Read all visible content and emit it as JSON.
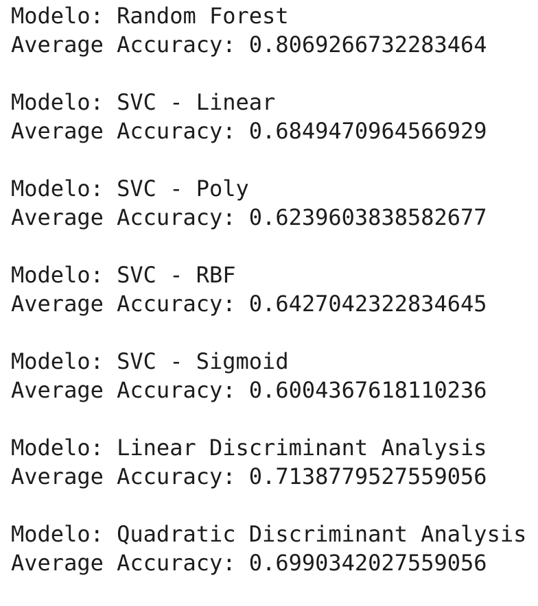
{
  "entries": [
    {
      "model": "Modelo: Random Forest",
      "accuracy": "Average Accuracy: 0.8069266732283464"
    },
    {
      "model": "Modelo: SVC - Linear",
      "accuracy": "Average Accuracy: 0.6849470964566929"
    },
    {
      "model": "Modelo: SVC - Poly",
      "accuracy": "Average Accuracy: 0.6239603838582677"
    },
    {
      "model": "Modelo: SVC - RBF",
      "accuracy": "Average Accuracy: 0.6427042322834645"
    },
    {
      "model": "Modelo: SVC - Sigmoid",
      "accuracy": "Average Accuracy: 0.6004367618110236"
    },
    {
      "model": "Modelo: Linear Discriminant Analysis",
      "accuracy": "Average Accuracy: 0.7138779527559056"
    },
    {
      "model": "Modelo: Quadratic Discriminant Analysis",
      "accuracy": "Average Accuracy: 0.6990342027559056"
    }
  ]
}
